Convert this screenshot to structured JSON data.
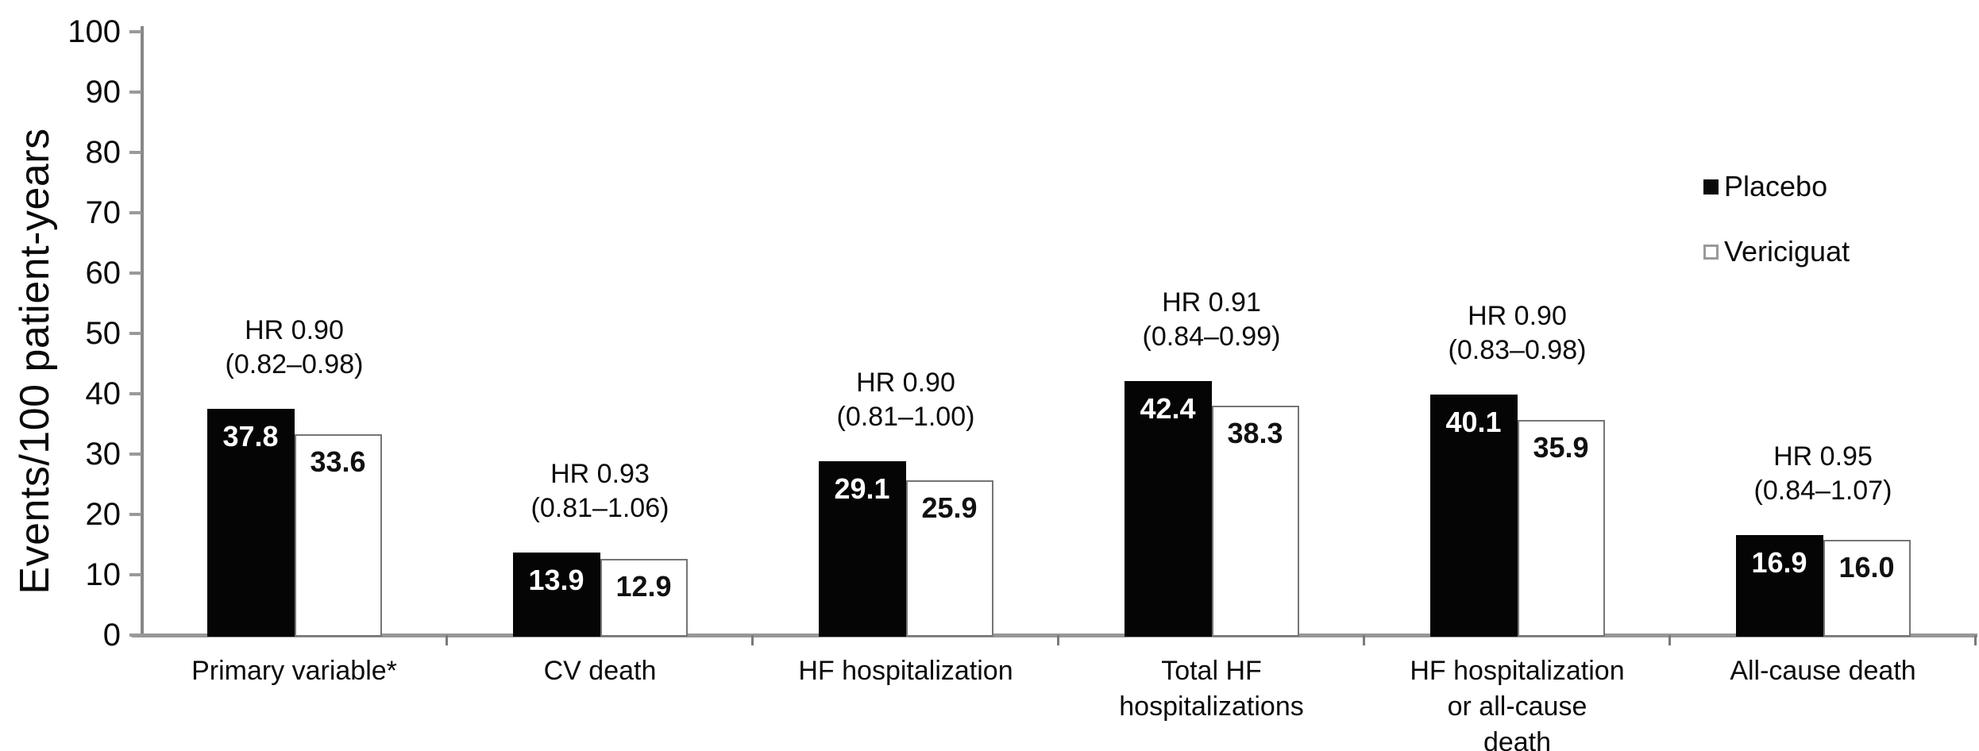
{
  "chart_data": {
    "type": "bar",
    "title": "",
    "xlabel": "",
    "ylabel": "Events/100 patient-years",
    "ylim": [
      0,
      100
    ],
    "ytick_step": 10,
    "yticks": [
      0,
      10,
      20,
      30,
      40,
      50,
      60,
      70,
      80,
      90,
      100
    ],
    "grid": false,
    "legend_position": "right",
    "categories": [
      "Primary variable*",
      "CV death",
      "HF hospitalization",
      "Total HF hospitalizations",
      "HF hospitalization or all-cause death",
      "All-cause death"
    ],
    "series": [
      {
        "name": "Placebo",
        "values": [
          37.8,
          13.9,
          29.1,
          42.4,
          40.1,
          16.9
        ]
      },
      {
        "name": "Vericiguat",
        "values": [
          33.6,
          12.9,
          25.9,
          38.3,
          35.9,
          16.0
        ]
      }
    ],
    "legend": [
      {
        "name": "Placebo",
        "fill": "#000000"
      },
      {
        "name": "Vericiguat",
        "fill": "#ffffff"
      }
    ],
    "colors": {
      "placebo_bar": "#050505",
      "vericiguat_bar": "#ffffff",
      "vericiguat_border": "#757575",
      "axis": "#979797",
      "text": "#0a0a0a"
    },
    "groups": [
      {
        "label_lines": [
          "Primary variable*"
        ],
        "hr": "HR 0.90",
        "ci": "(0.82–0.98)",
        "placebo": 37.8,
        "vericiguat": 33.6,
        "placebo_label": "37.8",
        "vericiguat_label": "33.6"
      },
      {
        "label_lines": [
          "CV death"
        ],
        "hr": "HR 0.93",
        "ci": "(0.81–1.06)",
        "placebo": 13.9,
        "vericiguat": 12.9,
        "placebo_label": "13.9",
        "vericiguat_label": "12.9"
      },
      {
        "label_lines": [
          "HF hospitalization"
        ],
        "hr": "HR 0.90",
        "ci": "(0.81–1.00)",
        "placebo": 29.1,
        "vericiguat": 25.9,
        "placebo_label": "29.1",
        "vericiguat_label": "25.9"
      },
      {
        "label_lines": [
          "Total HF",
          "hospitalizations"
        ],
        "hr": "HR 0.91",
        "ci": "(0.84–0.99)",
        "placebo": 42.4,
        "vericiguat": 38.3,
        "placebo_label": "42.4",
        "vericiguat_label": "38.3"
      },
      {
        "label_lines": [
          "HF hospitalization",
          "or all-cause",
          "death"
        ],
        "hr": "HR 0.90",
        "ci": "(0.83–0.98)",
        "placebo": 40.1,
        "vericiguat": 35.9,
        "placebo_label": "40.1",
        "vericiguat_label": "35.9"
      },
      {
        "label_lines": [
          "All-cause death"
        ],
        "hr": "HR 0.95",
        "ci": "(0.84–1.07)",
        "placebo": 16.9,
        "vericiguat": 16.0,
        "placebo_label": "16.9",
        "vericiguat_label": "16.0"
      }
    ]
  }
}
